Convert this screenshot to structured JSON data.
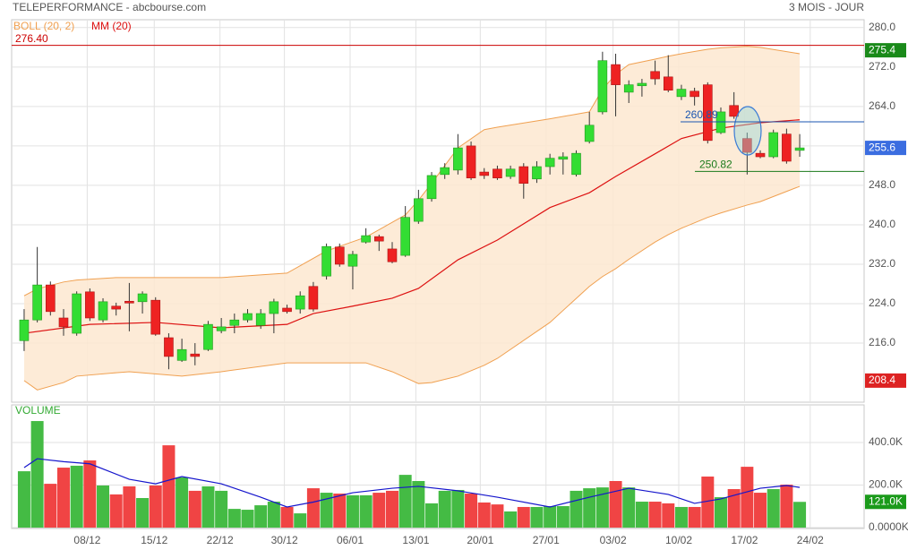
{
  "header": {
    "title": "TELEPERFORMANCE - abcbourse.com",
    "period": "3 MOIS - JOUR"
  },
  "chart_data": [
    {
      "type": "candlestick",
      "xlim": [
        -0.95,
        63.9
      ],
      "xticks": [
        {
          "value": 4.8,
          "label": "08/12"
        },
        {
          "value": 9.9,
          "label": "15/12"
        },
        {
          "value": 14.9,
          "label": "22/12"
        },
        {
          "value": 19.8,
          "label": "30/12"
        },
        {
          "value": 24.8,
          "label": "06/01"
        },
        {
          "value": 29.8,
          "label": "13/01"
        },
        {
          "value": 34.7,
          "label": "20/01"
        },
        {
          "value": 39.7,
          "label": "27/01"
        },
        {
          "value": 44.8,
          "label": "03/02"
        },
        {
          "value": 49.8,
          "label": "10/02"
        },
        {
          "value": 54.8,
          "label": "17/02"
        },
        {
          "value": 59.8,
          "label": "24/02"
        }
      ],
      "ylim": [
        204.2,
        281.6
      ],
      "yticks": [
        {
          "value": 280,
          "label": "280.0"
        },
        {
          "value": 272,
          "label": "272.0"
        },
        {
          "value": 264,
          "label": "264.0"
        },
        {
          "value": 256,
          "label": "256.0"
        },
        {
          "value": 248,
          "label": "248.0"
        },
        {
          "value": 240,
          "label": "240.0"
        },
        {
          "value": 232,
          "label": "232.0"
        },
        {
          "value": 224,
          "label": "224.0"
        },
        {
          "value": 216,
          "label": "216.0"
        }
      ],
      "grid": true,
      "up_color": "#33dd33",
      "down_color": "#ee2222",
      "open": [
        216.5,
        220.7,
        227.8,
        221.1,
        218.0,
        226.4,
        220.7,
        223.5,
        224.5,
        224.4,
        224.7,
        217.1,
        212.5,
        213.8,
        214.7,
        218.5,
        219.6,
        220.7,
        219.6,
        222.0,
        223.1,
        222.9,
        227.5,
        229.6,
        235.5,
        231.6,
        236.5,
        237.6,
        235.1,
        233.8,
        240.7,
        245.3,
        250.2,
        251.1,
        256.0,
        250.7,
        251.3,
        249.8,
        251.8,
        249.3,
        251.8,
        253.3,
        250.2,
        256.9,
        262.9,
        272.5,
        266.9,
        268.2,
        271.1,
        270.0,
        266.0,
        267.1,
        268.4,
        258.7,
        264.2,
        257.5,
        254.5,
        253.8,
        258.4,
        255.1
      ],
      "high": [
        222.9,
        235.5,
        228.5,
        222.9,
        226.5,
        227.1,
        225.1,
        224.2,
        228.2,
        226.5,
        225.3,
        218.0,
        216.9,
        216.0,
        220.5,
        221.1,
        222.0,
        222.9,
        222.9,
        225.0,
        223.8,
        226.5,
        228.4,
        236.2,
        236.2,
        234.7,
        239.3,
        238.0,
        236.5,
        243.8,
        247.1,
        250.7,
        252.5,
        258.4,
        256.9,
        251.5,
        252.0,
        252.0,
        252.5,
        252.9,
        254.4,
        254.7,
        255.1,
        262.9,
        275.1,
        274.7,
        269.3,
        269.6,
        273.3,
        274.4,
        268.4,
        267.8,
        268.9,
        263.8,
        266.9,
        258.7,
        255.1,
        259.3,
        259.5,
        258.4
      ],
      "low": [
        214.4,
        220.2,
        221.6,
        217.5,
        217.5,
        220.5,
        220.2,
        221.6,
        218.4,
        222.0,
        217.5,
        210.7,
        212.2,
        211.5,
        214.4,
        218.0,
        218.0,
        220.2,
        218.9,
        218.0,
        222.0,
        222.0,
        222.4,
        228.9,
        231.5,
        226.9,
        236.2,
        234.7,
        232.2,
        233.5,
        240.2,
        244.7,
        249.3,
        250.2,
        249.1,
        249.3,
        249.1,
        249.3,
        245.3,
        248.5,
        250.2,
        250.2,
        249.8,
        256.5,
        262.4,
        262.0,
        264.7,
        266.0,
        268.4,
        266.9,
        265.3,
        264.2,
        256.5,
        258.4,
        261.5,
        250.2,
        253.5,
        253.5,
        252.4,
        253.8
      ],
      "close": [
        220.7,
        227.8,
        222.4,
        219.3,
        226.0,
        221.1,
        224.4,
        222.9,
        224.2,
        226.0,
        217.8,
        213.3,
        214.7,
        213.3,
        219.8,
        219.3,
        220.7,
        222.0,
        222.0,
        224.4,
        222.4,
        225.6,
        222.9,
        235.6,
        232.0,
        234.0,
        237.8,
        236.7,
        232.5,
        241.5,
        245.3,
        250.0,
        251.6,
        255.6,
        249.5,
        250.0,
        249.5,
        251.3,
        248.4,
        251.8,
        253.5,
        253.8,
        254.5,
        260.2,
        273.3,
        268.4,
        268.4,
        268.7,
        269.6,
        267.3,
        267.5,
        266.0,
        257.1,
        262.9,
        262.0,
        254.7,
        253.8,
        258.7,
        252.9,
        255.6
      ],
      "bollinger": {
        "name": "BOLL (20, 2)",
        "color": "#f0a050",
        "fill": "#fde7d0",
        "x": [
          0,
          1,
          3,
          4,
          7,
          8,
          12,
          15,
          20,
          23,
          26,
          28,
          29,
          30,
          31,
          33,
          35,
          36,
          40,
          43,
          44,
          45,
          46,
          48,
          49,
          50,
          52,
          53,
          55,
          56,
          59
        ],
        "upper": [
          225.6,
          227.0,
          228.4,
          228.8,
          229.3,
          229.3,
          229.3,
          229.3,
          230.2,
          234.7,
          237.5,
          240.5,
          242.0,
          245.0,
          248.4,
          255.6,
          259.3,
          259.8,
          261.5,
          262.9,
          267.5,
          270.5,
          272.5,
          273.6,
          274.2,
          274.7,
          275.6,
          275.9,
          276.2,
          276.0,
          274.7
        ],
        "lower": [
          208.4,
          206.5,
          208.0,
          209.3,
          210.0,
          210.2,
          209.3,
          210.2,
          212.0,
          212.0,
          212.0,
          210.2,
          209.0,
          207.8,
          208.0,
          209.3,
          211.5,
          212.9,
          220.2,
          227.5,
          229.5,
          231.1,
          233.0,
          236.5,
          238.0,
          239.3,
          241.5,
          242.4,
          244.0,
          244.7,
          247.8
        ]
      },
      "ma": {
        "name": "MM (20)",
        "color": "#dd1111",
        "x": [
          0,
          5,
          10,
          15,
          20,
          22,
          25,
          28,
          30,
          33,
          36,
          40,
          43,
          45,
          48,
          50,
          53,
          56,
          59
        ],
        "values": [
          218.0,
          219.8,
          220.2,
          219.1,
          219.8,
          222.0,
          223.5,
          225.1,
          227.1,
          232.9,
          236.9,
          243.5,
          246.5,
          249.8,
          254.4,
          257.5,
          259.6,
          260.7,
          261.3
        ]
      },
      "hlines": [
        {
          "value": 276.4,
          "label": "276.40",
          "color": "#cc0000"
        },
        {
          "value": 260.89,
          "label": "260.89",
          "color": "#1a55b0"
        },
        {
          "value": 250.82,
          "label": "250.82",
          "color": "#1a7a1a"
        }
      ],
      "badges": [
        {
          "value": 275.4,
          "label": "275.4",
          "color": "#1a8a1a"
        },
        {
          "value": 255.6,
          "label": "255.6",
          "color": "#3b6de0"
        },
        {
          "value": 208.4,
          "label": "208.4",
          "color": "#dd2222"
        }
      ]
    },
    {
      "type": "bar",
      "title": "VOLUME",
      "ylim": [
        0,
        577000
      ],
      "yticks": [
        {
          "value": 400000,
          "label": "400.0K"
        },
        {
          "value": 200000,
          "label": "200.0K"
        },
        {
          "value": 0,
          "label": "0.0000K"
        }
      ],
      "values": [
        265000,
        501000,
        206000,
        282000,
        291000,
        316000,
        198000,
        156000,
        194000,
        139000,
        198000,
        387000,
        236000,
        173000,
        194000,
        173000,
        88000,
        84000,
        105000,
        122000,
        97000,
        67000,
        185000,
        164000,
        160000,
        152000,
        152000,
        164000,
        173000,
        248000,
        219000,
        114000,
        173000,
        177000,
        160000,
        118000,
        109000,
        76000,
        97000,
        97000,
        101000,
        101000,
        173000,
        185000,
        189000,
        219000,
        189000,
        122000,
        122000,
        114000,
        97000,
        97000,
        240000,
        143000,
        181000,
        286000,
        164000,
        181000,
        202000,
        121000
      ],
      "up_color": "#44bb44",
      "down_color": "#f04444",
      "ma": {
        "color": "#1515cc",
        "x": [
          0,
          1,
          3,
          5,
          8,
          10,
          12,
          15,
          18,
          20,
          22,
          25,
          28,
          30,
          33,
          36,
          40,
          43,
          46,
          49,
          51,
          53,
          56,
          58,
          59
        ],
        "values": [
          282000,
          324000,
          310000,
          300000,
          227000,
          206000,
          240000,
          206000,
          143000,
          97000,
          120000,
          164000,
          185000,
          194000,
          173000,
          143000,
          97000,
          143000,
          185000,
          156000,
          114000,
          135000,
          185000,
          198000,
          189000
        ]
      },
      "badge": {
        "value": 121000,
        "label": "121.0K",
        "color": "#1a9a1a"
      }
    }
  ]
}
